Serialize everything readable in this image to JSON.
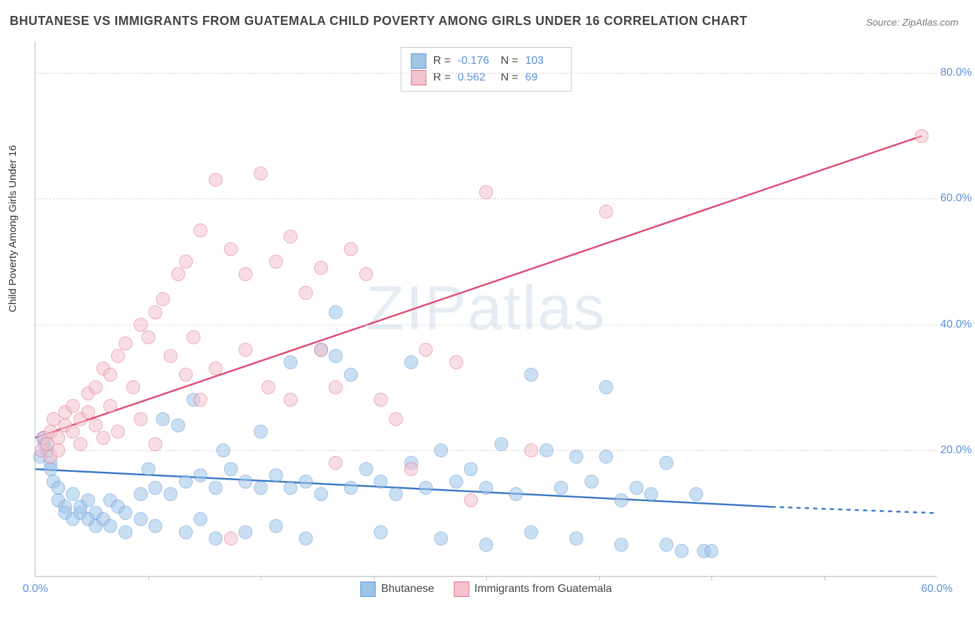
{
  "title": "BHUTANESE VS IMMIGRANTS FROM GUATEMALA CHILD POVERTY AMONG GIRLS UNDER 16 CORRELATION CHART",
  "source": "Source: ZipAtlas.com",
  "watermark": "ZIPatlas",
  "ylabel": "Child Poverty Among Girls Under 16",
  "chart": {
    "type": "scatter",
    "xlim": [
      0,
      60
    ],
    "ylim": [
      0,
      85
    ],
    "ytick_values": [
      20,
      40,
      60,
      80
    ],
    "ytick_labels": [
      "20.0%",
      "40.0%",
      "60.0%",
      "80.0%"
    ],
    "xtick_values": [
      0,
      60
    ],
    "xtick_labels": [
      "0.0%",
      "60.0%"
    ],
    "xtick_minor": [
      7.5,
      15,
      22.5,
      30,
      37.5,
      45,
      52.5
    ],
    "grid_color": "#d8d8d8",
    "background_color": "#ffffff",
    "marker_radius": 9,
    "series": [
      {
        "name": "Bhutanese",
        "color_fill": "#9ec5e8",
        "color_stroke": "#5a8fd6",
        "R": "-0.176",
        "N": "103",
        "trend": {
          "x1": 0,
          "y1": 17,
          "x2_solid": 49,
          "y2_solid": 11,
          "x2": 60,
          "y2": 10,
          "stroke": "#3b78c4",
          "width": 2.5
        },
        "points": [
          [
            0.3,
            19
          ],
          [
            0.5,
            22
          ],
          [
            0.6,
            21
          ],
          [
            0.8,
            20
          ],
          [
            1,
            18
          ],
          [
            1,
            17
          ],
          [
            1.2,
            15
          ],
          [
            1.5,
            12
          ],
          [
            1.5,
            14
          ],
          [
            2,
            11
          ],
          [
            2,
            10
          ],
          [
            2.5,
            9
          ],
          [
            2.5,
            13
          ],
          [
            3,
            10
          ],
          [
            3,
            11
          ],
          [
            3.5,
            9
          ],
          [
            3.5,
            12
          ],
          [
            4,
            8
          ],
          [
            4,
            10
          ],
          [
            4.5,
            9
          ],
          [
            5,
            8
          ],
          [
            5,
            12
          ],
          [
            5.5,
            11
          ],
          [
            6,
            7
          ],
          [
            6,
            10
          ],
          [
            7,
            9
          ],
          [
            7,
            13
          ],
          [
            7.5,
            17
          ],
          [
            8,
            8
          ],
          [
            8,
            14
          ],
          [
            8.5,
            25
          ],
          [
            9,
            13
          ],
          [
            9.5,
            24
          ],
          [
            10,
            7
          ],
          [
            10,
            15
          ],
          [
            10.5,
            28
          ],
          [
            11,
            16
          ],
          [
            11,
            9
          ],
          [
            12,
            6
          ],
          [
            12,
            14
          ],
          [
            12.5,
            20
          ],
          [
            13,
            17
          ],
          [
            14,
            7
          ],
          [
            14,
            15
          ],
          [
            15,
            14
          ],
          [
            15,
            23
          ],
          [
            16,
            8
          ],
          [
            16,
            16
          ],
          [
            17,
            14
          ],
          [
            17,
            34
          ],
          [
            18,
            6
          ],
          [
            18,
            15
          ],
          [
            19,
            36
          ],
          [
            19,
            13
          ],
          [
            20,
            42
          ],
          [
            20,
            35
          ],
          [
            21,
            14
          ],
          [
            21,
            32
          ],
          [
            22,
            17
          ],
          [
            23,
            7
          ],
          [
            23,
            15
          ],
          [
            24,
            13
          ],
          [
            25,
            34
          ],
          [
            25,
            18
          ],
          [
            26,
            14
          ],
          [
            27,
            6
          ],
          [
            27,
            20
          ],
          [
            28,
            15
          ],
          [
            29,
            17
          ],
          [
            30,
            5
          ],
          [
            30,
            14
          ],
          [
            31,
            21
          ],
          [
            32,
            13
          ],
          [
            33,
            32
          ],
          [
            33,
            7
          ],
          [
            34,
            20
          ],
          [
            35,
            14
          ],
          [
            36,
            19
          ],
          [
            36,
            6
          ],
          [
            37,
            15
          ],
          [
            38,
            30
          ],
          [
            38,
            19
          ],
          [
            39,
            12
          ],
          [
            39,
            5
          ],
          [
            40,
            14
          ],
          [
            41,
            13
          ],
          [
            42,
            5
          ],
          [
            42,
            18
          ],
          [
            43,
            4
          ],
          [
            44,
            13
          ],
          [
            44.5,
            4
          ],
          [
            45,
            4
          ]
        ]
      },
      {
        "name": "Immigrants from Guatemala",
        "color_fill": "#f4c3ce",
        "color_stroke": "#e06a87",
        "R": "0.562",
        "N": "69",
        "trend": {
          "x1": 0,
          "y1": 22,
          "x2_solid": 59,
          "y2_solid": 70,
          "x2": 59,
          "y2": 70,
          "stroke": "#e04a72",
          "width": 2.5
        },
        "points": [
          [
            0.4,
            20
          ],
          [
            0.6,
            22
          ],
          [
            0.8,
            21
          ],
          [
            1,
            23
          ],
          [
            1,
            19
          ],
          [
            1.2,
            25
          ],
          [
            1.5,
            22
          ],
          [
            1.5,
            20
          ],
          [
            2,
            24
          ],
          [
            2,
            26
          ],
          [
            2.5,
            23
          ],
          [
            2.5,
            27
          ],
          [
            3,
            21
          ],
          [
            3,
            25
          ],
          [
            3.5,
            26
          ],
          [
            3.5,
            29
          ],
          [
            4,
            24
          ],
          [
            4,
            30
          ],
          [
            4.5,
            22
          ],
          [
            4.5,
            33
          ],
          [
            5,
            32
          ],
          [
            5,
            27
          ],
          [
            5.5,
            35
          ],
          [
            5.5,
            23
          ],
          [
            6,
            37
          ],
          [
            6.5,
            30
          ],
          [
            7,
            40
          ],
          [
            7,
            25
          ],
          [
            7.5,
            38
          ],
          [
            8,
            42
          ],
          [
            8,
            21
          ],
          [
            8.5,
            44
          ],
          [
            9,
            35
          ],
          [
            9.5,
            48
          ],
          [
            10,
            32
          ],
          [
            10,
            50
          ],
          [
            10.5,
            38
          ],
          [
            11,
            55
          ],
          [
            11,
            28
          ],
          [
            12,
            63
          ],
          [
            12,
            33
          ],
          [
            13,
            52
          ],
          [
            13,
            6
          ],
          [
            14,
            36
          ],
          [
            14,
            48
          ],
          [
            15,
            64
          ],
          [
            15.5,
            30
          ],
          [
            16,
            50
          ],
          [
            17,
            54
          ],
          [
            17,
            28
          ],
          [
            18,
            45
          ],
          [
            19,
            49
          ],
          [
            19,
            36
          ],
          [
            20,
            18
          ],
          [
            20,
            30
          ],
          [
            21,
            52
          ],
          [
            22,
            48
          ],
          [
            23,
            28
          ],
          [
            24,
            25
          ],
          [
            25,
            17
          ],
          [
            26,
            36
          ],
          [
            28,
            34
          ],
          [
            29,
            12
          ],
          [
            30,
            61
          ],
          [
            33,
            20
          ],
          [
            38,
            58
          ],
          [
            59,
            70
          ]
        ]
      }
    ]
  },
  "legend_stats_labels": {
    "R": "R =",
    "N": "N ="
  },
  "legend_bottom": [
    "Bhutanese",
    "Immigrants from Guatemala"
  ]
}
